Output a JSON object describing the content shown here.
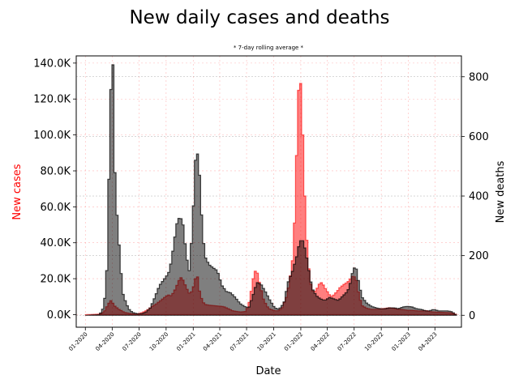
{
  "chart_data": {
    "type": "area",
    "title": "New daily cases and deaths",
    "subtitle": "* 7-day rolling average *",
    "xlabel": "Date",
    "ylabel_left": "New cases",
    "ylabel_right": "New deaths",
    "x_range": [
      "2019-12-01",
      "2023-06-30"
    ],
    "ylim_left": [
      -7000,
      144000
    ],
    "ylim_right": [
      -40,
      870
    ],
    "y_ticks_left": [
      0,
      20000,
      40000,
      60000,
      80000,
      100000,
      120000,
      140000
    ],
    "y_tick_labels_left": [
      "0.0K",
      "20.0K",
      "40.0K",
      "60.0K",
      "80.0K",
      "100.0K",
      "120.0K",
      "140.0K"
    ],
    "y_ticks_right": [
      0,
      200,
      400,
      600,
      800
    ],
    "y_tick_labels_right": [
      "0",
      "200",
      "400",
      "600",
      "800"
    ],
    "x_ticks": [
      "2020-01-01",
      "2020-04-01",
      "2020-07-01",
      "2020-10-01",
      "2021-01-01",
      "2021-04-01",
      "2021-07-01",
      "2021-10-01",
      "2022-01-01",
      "2022-04-01",
      "2022-07-01",
      "2022-10-01",
      "2023-01-01",
      "2023-04-01"
    ],
    "x_tick_labels": [
      "01-2020",
      "04-2020",
      "07-2020",
      "10-2020",
      "01-2021",
      "04-2021",
      "07-2021",
      "10-2021",
      "01-2022",
      "04-2022",
      "07-2022",
      "10-2022",
      "01-2023",
      "04-2023"
    ],
    "grid": true,
    "colors": {
      "cases": "#ff0000",
      "deaths": "#000000",
      "cases_label": "#ff0000"
    },
    "series": [
      {
        "key": "cases",
        "axis": "left",
        "x": [
          "2019-12-31",
          "2020-02-15",
          "2020-03-01",
          "2020-03-15",
          "2020-03-25",
          "2020-04-05",
          "2020-04-20",
          "2020-05-10",
          "2020-06-01",
          "2020-06-20",
          "2020-07-10",
          "2020-07-25",
          "2020-08-10",
          "2020-08-25",
          "2020-09-10",
          "2020-09-25",
          "2020-10-05",
          "2020-10-15",
          "2020-10-25",
          "2020-11-05",
          "2020-11-15",
          "2020-11-25",
          "2020-12-05",
          "2020-12-15",
          "2020-12-25",
          "2021-01-05",
          "2021-01-12",
          "2021-01-20",
          "2021-01-30",
          "2021-02-10",
          "2021-02-25",
          "2021-03-10",
          "2021-03-25",
          "2021-04-10",
          "2021-04-25",
          "2021-05-10",
          "2021-05-25",
          "2021-06-10",
          "2021-06-25",
          "2021-07-05",
          "2021-07-12",
          "2021-07-20",
          "2021-07-30",
          "2021-08-10",
          "2021-08-25",
          "2021-09-10",
          "2021-09-25",
          "2021-10-10",
          "2021-10-25",
          "2021-11-10",
          "2021-11-20",
          "2021-11-30",
          "2021-12-10",
          "2021-12-17",
          "2021-12-24",
          "2021-12-30",
          "2022-01-05",
          "2022-01-10",
          "2022-01-15",
          "2022-01-22",
          "2022-01-30",
          "2022-02-10",
          "2022-02-20",
          "2022-03-01",
          "2022-03-10",
          "2022-03-20",
          "2022-04-01",
          "2022-04-10",
          "2022-04-20",
          "2022-05-01",
          "2022-05-10",
          "2022-05-25",
          "2022-06-05",
          "2022-06-15",
          "2022-06-25",
          "2022-07-05",
          "2022-07-15",
          "2022-07-25",
          "2022-08-10",
          "2022-08-25",
          "2022-09-10",
          "2022-09-25",
          "2022-10-10",
          "2022-10-25",
          "2022-11-10",
          "2022-11-25",
          "2022-12-10",
          "2022-12-25",
          "2023-01-10",
          "2023-01-25",
          "2023-02-10",
          "2023-02-25",
          "2023-03-10",
          "2023-03-25",
          "2023-04-10",
          "2023-04-25",
          "2023-05-10",
          "2023-05-25",
          "2023-06-10"
        ],
        "values": [
          0,
          300,
          1500,
          6000,
          8000,
          5000,
          3000,
          1200,
          500,
          300,
          1200,
          2500,
          4500,
          6000,
          8000,
          10000,
          11000,
          10500,
          13000,
          17000,
          21000,
          19000,
          15000,
          12000,
          13000,
          20000,
          21000,
          12000,
          7000,
          5500,
          5200,
          5000,
          4800,
          4500,
          3500,
          2200,
          1800,
          1500,
          1800,
          6000,
          12000,
          20000,
          26000,
          18000,
          8000,
          3500,
          2500,
          2000,
          3500,
          10000,
          18000,
          30000,
          60000,
          110000,
          136000,
          125000,
          95000,
          70000,
          50000,
          30000,
          18000,
          12000,
          14000,
          17000,
          18000,
          15000,
          12000,
          10000,
          11000,
          13000,
          15000,
          17000,
          18000,
          20000,
          22000,
          19000,
          10000,
          5000,
          3500,
          3000,
          3000,
          3200,
          3500,
          3800,
          3500,
          3000,
          2800,
          2500,
          2400,
          2200,
          2000,
          2300,
          1800,
          1500,
          1400,
          1300,
          1200,
          1000,
          0
        ]
      },
      {
        "key": "deaths",
        "axis": "right",
        "x": [
          "2019-12-31",
          "2020-02-15",
          "2020-03-01",
          "2020-03-10",
          "2020-03-18",
          "2020-03-25",
          "2020-03-31",
          "2020-04-06",
          "2020-04-13",
          "2020-04-20",
          "2020-04-27",
          "2020-05-05",
          "2020-05-15",
          "2020-05-25",
          "2020-06-05",
          "2020-06-20",
          "2020-07-05",
          "2020-07-20",
          "2020-08-05",
          "2020-08-20",
          "2020-09-05",
          "2020-09-20",
          "2020-10-05",
          "2020-10-15",
          "2020-10-25",
          "2020-11-05",
          "2020-11-15",
          "2020-11-25",
          "2020-12-05",
          "2020-12-15",
          "2020-12-25",
          "2021-01-05",
          "2021-01-15",
          "2021-01-25",
          "2021-02-05",
          "2021-02-20",
          "2021-03-05",
          "2021-03-20",
          "2021-04-05",
          "2021-04-20",
          "2021-05-05",
          "2021-05-20",
          "2021-06-05",
          "2021-06-20",
          "2021-07-05",
          "2021-07-20",
          "2021-08-01",
          "2021-08-15",
          "2021-08-30",
          "2021-09-15",
          "2021-10-01",
          "2021-10-15",
          "2021-11-01",
          "2021-11-15",
          "2021-12-01",
          "2021-12-15",
          "2021-12-25",
          "2022-01-05",
          "2022-01-15",
          "2022-01-25",
          "2022-02-05",
          "2022-02-20",
          "2022-03-05",
          "2022-03-20",
          "2022-04-05",
          "2022-04-20",
          "2022-05-05",
          "2022-05-20",
          "2022-06-05",
          "2022-06-15",
          "2022-06-25",
          "2022-07-05",
          "2022-07-15",
          "2022-07-25",
          "2022-08-10",
          "2022-08-25",
          "2022-09-10",
          "2022-09-25",
          "2022-10-10",
          "2022-10-25",
          "2022-11-10",
          "2022-11-25",
          "2022-12-10",
          "2022-12-25",
          "2023-01-10",
          "2023-01-25",
          "2023-02-10",
          "2023-02-25",
          "2023-03-10",
          "2023-03-25",
          "2023-04-10",
          "2023-04-25",
          "2023-05-10",
          "2023-05-25",
          "2023-06-10"
        ],
        "values": [
          0,
          2,
          30,
          150,
          500,
          800,
          840,
          500,
          350,
          250,
          150,
          70,
          40,
          20,
          10,
          5,
          5,
          10,
          25,
          60,
          100,
          120,
          140,
          180,
          250,
          320,
          330,
          300,
          200,
          150,
          280,
          520,
          550,
          350,
          200,
          170,
          160,
          150,
          100,
          80,
          75,
          60,
          40,
          30,
          25,
          70,
          110,
          105,
          80,
          50,
          25,
          20,
          40,
          110,
          150,
          200,
          250,
          250,
          210,
          150,
          90,
          65,
          55,
          50,
          60,
          55,
          50,
          65,
          80,
          110,
          160,
          155,
          100,
          60,
          40,
          30,
          25,
          22,
          22,
          25,
          25,
          22,
          28,
          30,
          28,
          22,
          20,
          15,
          15,
          20,
          15,
          15,
          15,
          12,
          0
        ]
      }
    ]
  }
}
